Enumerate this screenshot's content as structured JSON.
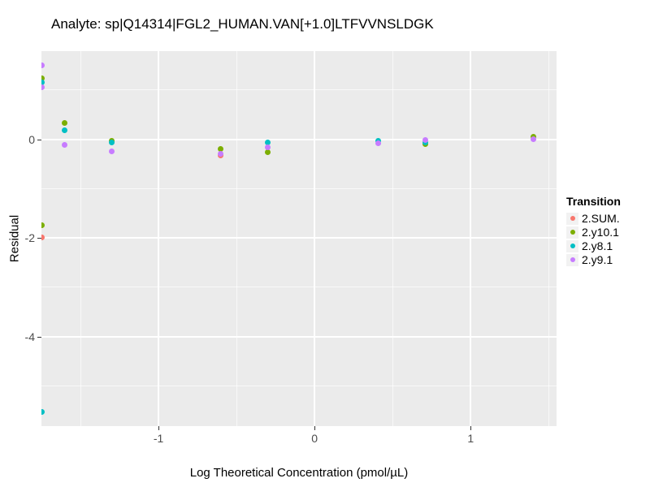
{
  "chart_data": {
    "type": "scatter",
    "title": "Analyte: sp|Q14314|FGL2_HUMAN.VAN[+1.0]LTFVVNSLDGK",
    "xlabel": "Log Theoretical Concentration (pmol/µL)",
    "ylabel": "Residual",
    "legend_title": "Transition",
    "xlim": [
      -1.75,
      1.55
    ],
    "ylim": [
      -5.82,
      1.79
    ],
    "panel_background": "#EBEBEB",
    "gridline_color": "#FFFFFF",
    "x_ticks": {
      "values": [
        -1,
        0,
        1
      ],
      "labels": [
        "-1",
        "0",
        "1"
      ]
    },
    "y_ticks": {
      "values": [
        0,
        -2,
        -4
      ],
      "labels": [
        "0",
        "-2",
        "-4"
      ]
    },
    "x_minor": [
      -1.5,
      -0.5,
      0.5,
      1.5
    ],
    "y_minor": [
      1,
      -1,
      -3,
      -5
    ],
    "grid": true,
    "legend_position": "right",
    "series": [
      {
        "name": "2.SUM.",
        "color": "#F8766D",
        "points": [
          [
            -1.75,
            -1.99
          ],
          [
            -0.6,
            -0.33
          ]
        ]
      },
      {
        "name": "2.y10.1",
        "color": "#7CAE00",
        "points": [
          [
            -1.75,
            1.23
          ],
          [
            -1.75,
            -1.74
          ],
          [
            -1.6,
            0.34
          ],
          [
            -1.3,
            -0.03
          ],
          [
            -0.6,
            -0.19
          ],
          [
            -0.3,
            -0.26
          ],
          [
            0.71,
            -0.1
          ],
          [
            1.4,
            0.05
          ]
        ]
      },
      {
        "name": "2.y8.1",
        "color": "#00BFC4",
        "points": [
          [
            -1.75,
            1.16
          ],
          [
            -1.75,
            -5.53
          ],
          [
            -1.6,
            0.18
          ],
          [
            -1.3,
            -0.07
          ],
          [
            -0.3,
            -0.06
          ],
          [
            0.41,
            -0.03
          ],
          [
            0.71,
            -0.07
          ]
        ]
      },
      {
        "name": "2.y9.1",
        "color": "#C77CFF",
        "points": [
          [
            -1.75,
            1.5
          ],
          [
            -1.75,
            1.05
          ],
          [
            -1.6,
            -0.11
          ],
          [
            -1.3,
            -0.24
          ],
          [
            -0.6,
            -0.29
          ],
          [
            -0.3,
            -0.16
          ],
          [
            0.41,
            -0.08
          ],
          [
            0.71,
            -0.01
          ],
          [
            1.4,
            0.01
          ]
        ]
      }
    ]
  }
}
